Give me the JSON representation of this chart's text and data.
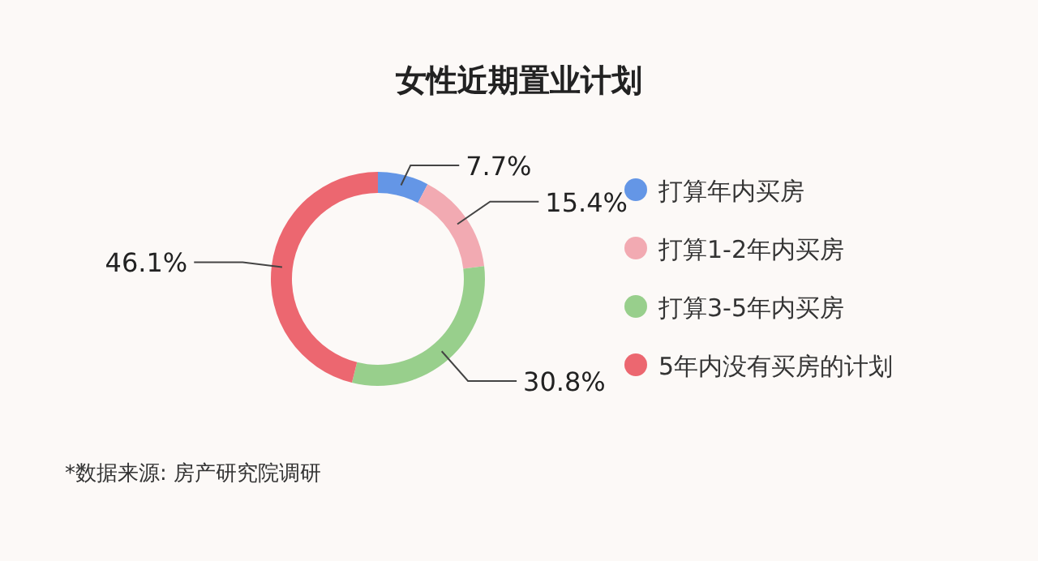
{
  "chart_data": {
    "type": "donut",
    "title": "女性近期置业计划",
    "categories": [
      "打算年内买房",
      "打算1-2年内买房",
      "打算3-5年内买房",
      "5年内没有买房的计划"
    ],
    "values": [
      7.7,
      15.4,
      30.8,
      46.1
    ],
    "value_labels": [
      "7.7%",
      "15.4%",
      "30.8%",
      "46.1%"
    ],
    "colors": [
      "#6496e6",
      "#f2aab2",
      "#98cf8c",
      "#ec6770"
    ],
    "legend": "right",
    "annotations": [
      "*数据来源: 房产研究院调研"
    ]
  }
}
